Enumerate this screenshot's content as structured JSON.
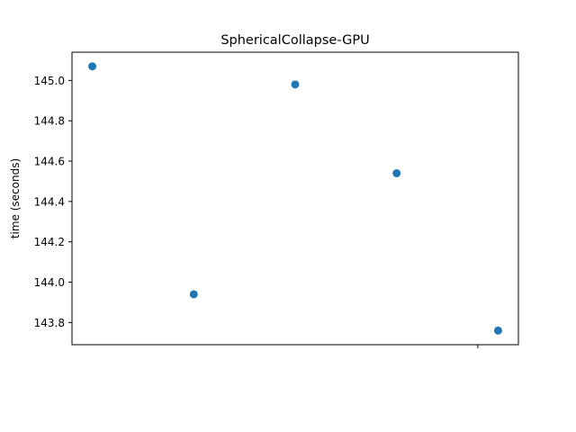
{
  "chart_data": {
    "type": "scatter",
    "title": "SphericalCollapse-GPU",
    "xlabel": "",
    "ylabel": "time (seconds)",
    "x": [
      0,
      1,
      2,
      3,
      4
    ],
    "y": [
      145.07,
      143.94,
      144.98,
      144.54,
      143.76
    ],
    "xlim": [
      -0.2,
      4.2
    ],
    "ylim": [
      143.69,
      145.14
    ],
    "yticks": [
      143.8,
      144.0,
      144.2,
      144.4,
      144.6,
      144.8,
      145.0
    ],
    "ytick_labels": [
      "143.8",
      "144.0",
      "144.2",
      "144.4",
      "144.6",
      "144.8",
      "145.0"
    ],
    "xtick_positions": [
      3.8
    ],
    "xtick_labels": [
      ""
    ],
    "grid": false,
    "legend": "none",
    "marker_color": "#1f77b4"
  }
}
